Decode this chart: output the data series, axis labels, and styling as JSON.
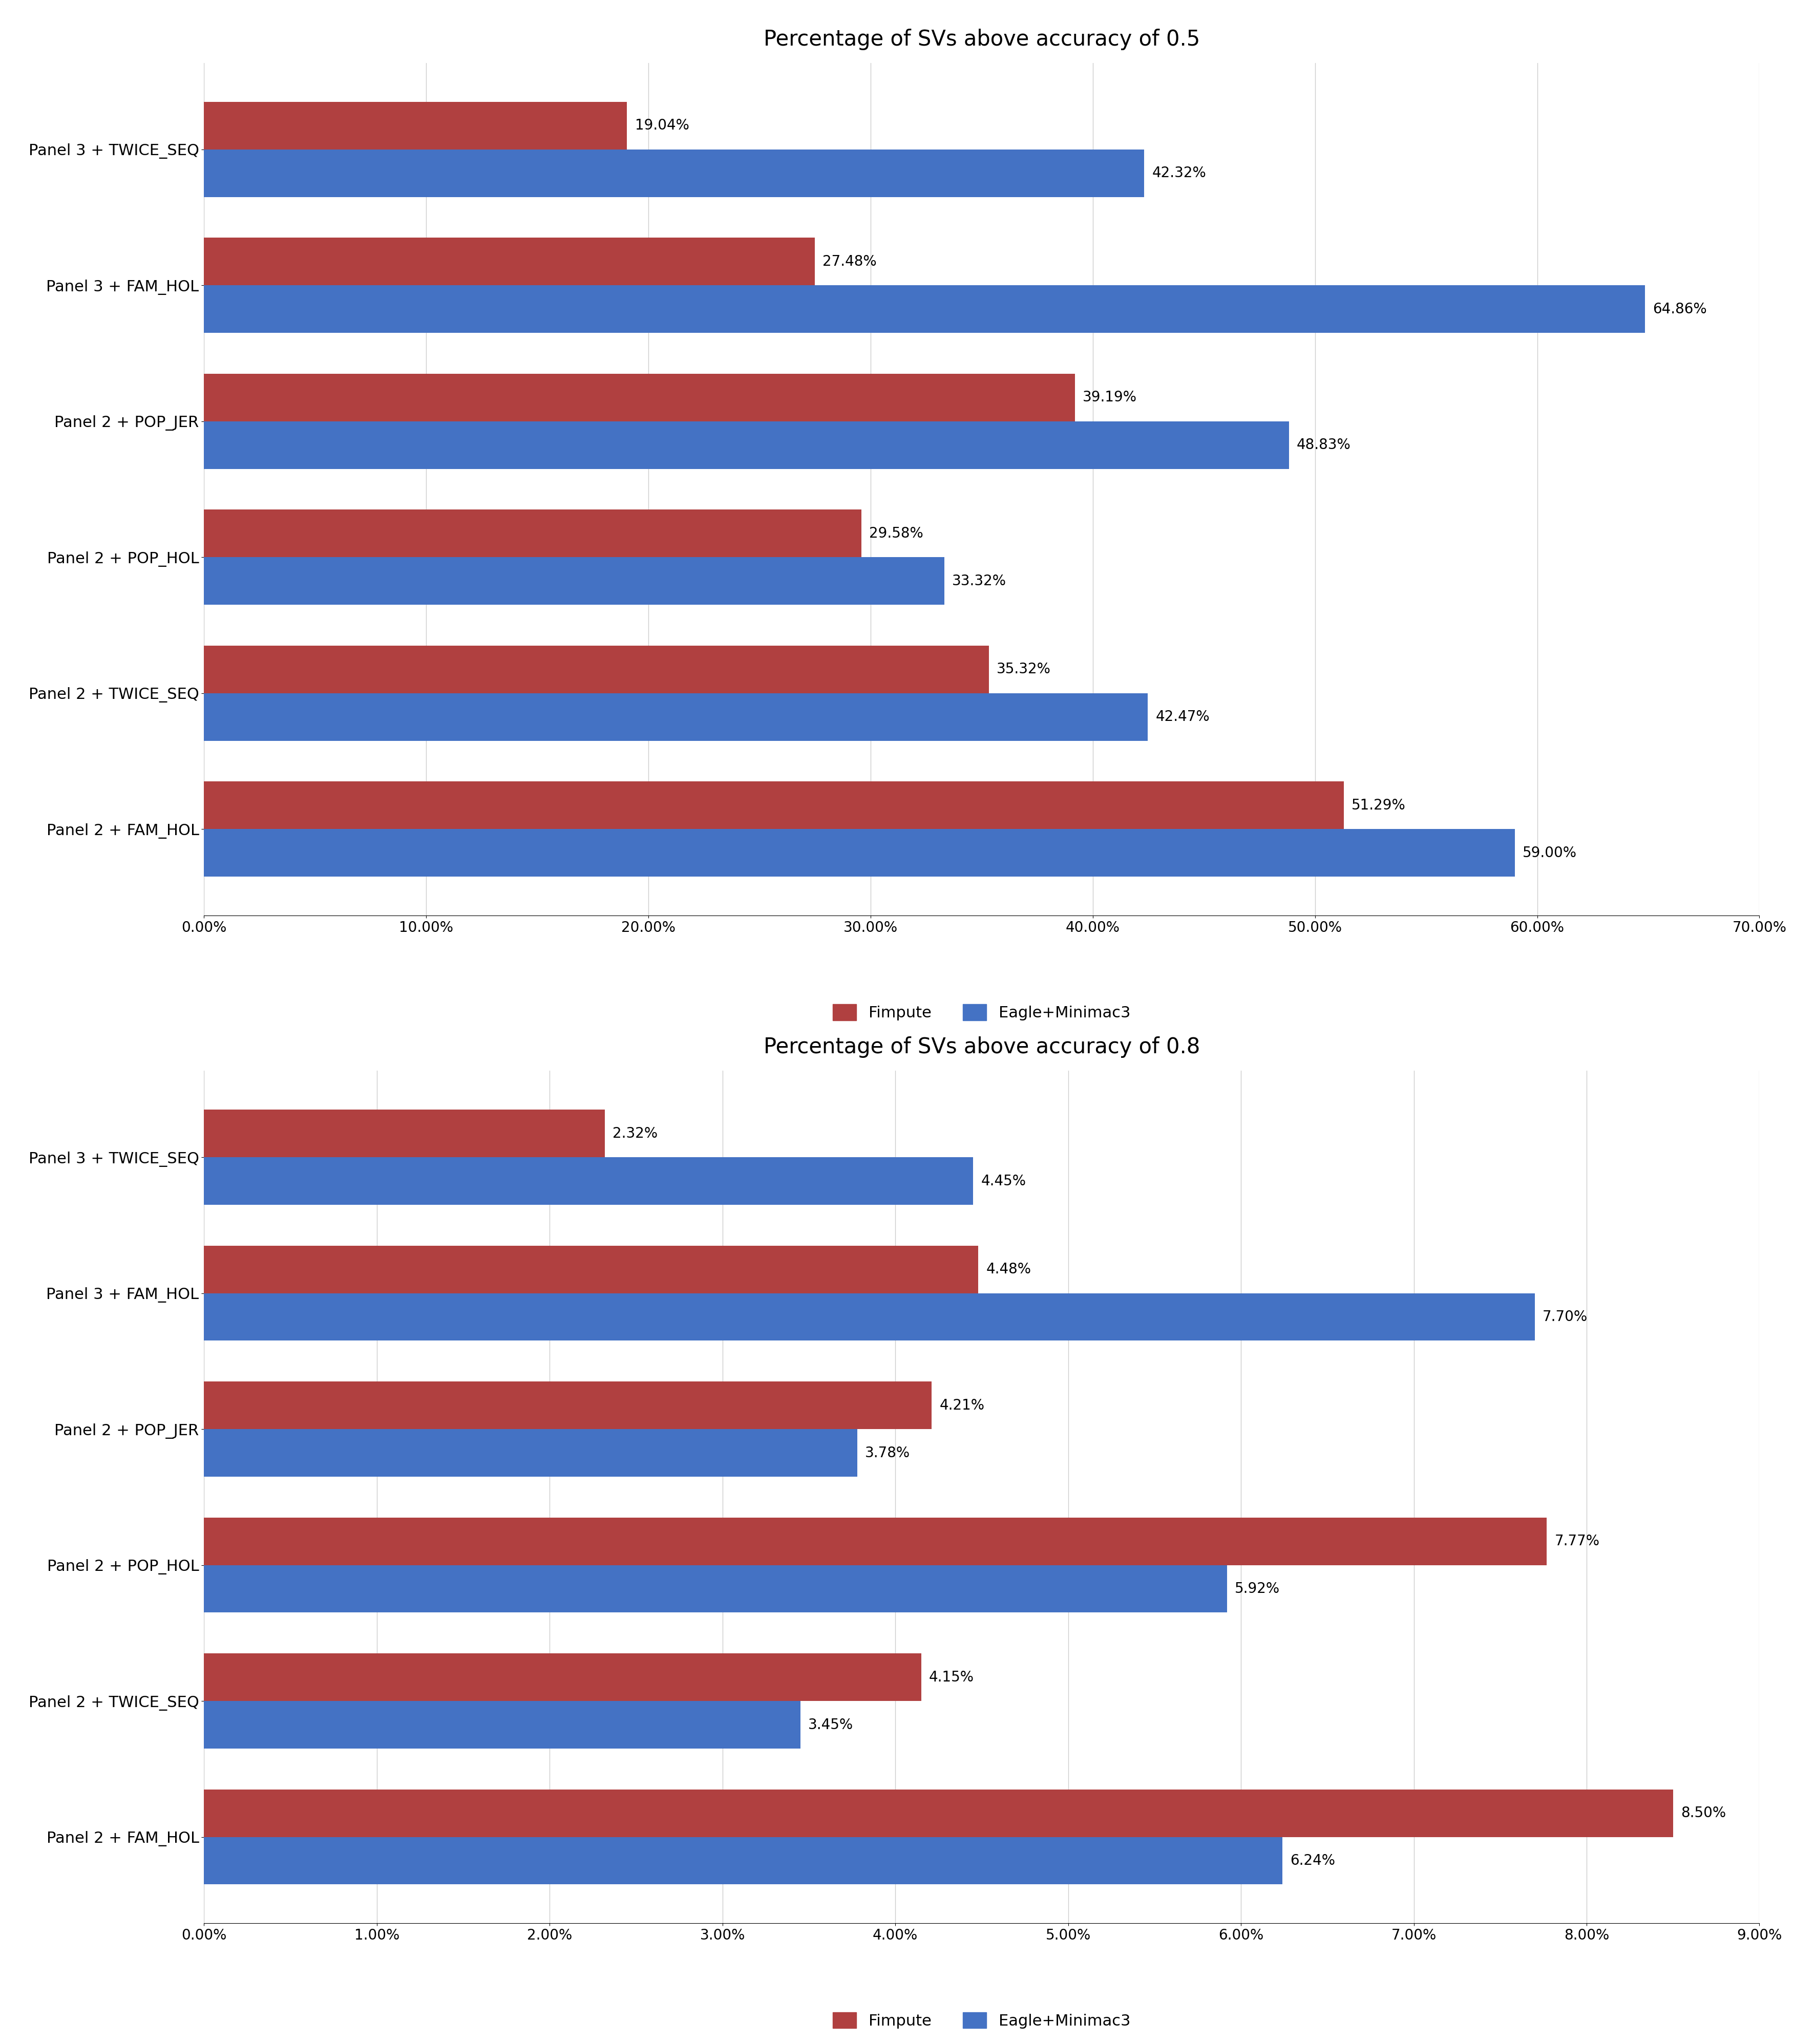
{
  "chart1": {
    "title": "Percentage of SVs above accuracy of 0.5",
    "categories": [
      "Panel 3 + TWICE_SEQ",
      "Panel 3 + FAM_HOL",
      "Panel 2 + POP_JER",
      "Panel 2 + POP_HOL",
      "Panel 2 + TWICE_SEQ",
      "Panel 2 + FAM_HOL"
    ],
    "fimpute": [
      19.04,
      27.48,
      39.19,
      29.58,
      35.32,
      51.29
    ],
    "eagle": [
      42.32,
      64.86,
      48.83,
      33.32,
      42.47,
      59.0
    ],
    "fimpute_labels": [
      "19.04%",
      "27.48%",
      "39.19%",
      "29.58%",
      "35.32%",
      "51.29%"
    ],
    "eagle_labels": [
      "42.32%",
      "64.86%",
      "48.83%",
      "33.32%",
      "42.47%",
      "59.00%"
    ],
    "xlim": [
      0,
      70
    ],
    "xticks": [
      0,
      10,
      20,
      30,
      40,
      50,
      60,
      70
    ],
    "xtick_labels": [
      "0.00%",
      "10.00%",
      "20.00%",
      "30.00%",
      "40.00%",
      "50.00%",
      "60.00%",
      "70.00%"
    ]
  },
  "chart2": {
    "title": "Percentage of SVs above accuracy of 0.8",
    "categories": [
      "Panel 3 + TWICE_SEQ",
      "Panel 3 + FAM_HOL",
      "Panel 2 + POP_JER",
      "Panel 2 + POP_HOL",
      "Panel 2 + TWICE_SEQ",
      "Panel 2 + FAM_HOL"
    ],
    "fimpute": [
      2.32,
      4.48,
      4.21,
      7.77,
      4.15,
      8.5
    ],
    "eagle": [
      4.45,
      7.7,
      3.78,
      5.92,
      3.45,
      6.24
    ],
    "fimpute_labels": [
      "2.32%",
      "4.48%",
      "4.21%",
      "7.77%",
      "4.15%",
      "8.50%"
    ],
    "eagle_labels": [
      "4.45%",
      "7.70%",
      "3.78%",
      "5.92%",
      "3.45%",
      "6.24%"
    ],
    "xlim": [
      0,
      9
    ],
    "xticks": [
      0,
      1,
      2,
      3,
      4,
      5,
      6,
      7,
      8,
      9
    ],
    "xtick_labels": [
      "0.00%",
      "1.00%",
      "2.00%",
      "3.00%",
      "4.00%",
      "5.00%",
      "6.00%",
      "7.00%",
      "8.00%",
      "9.00%"
    ]
  },
  "fimpute_color": "#B04040",
  "eagle_color": "#4472C4",
  "background_color": "#FFFFFF",
  "legend_labels": [
    "Fimpute",
    "Eagle+Minimac3"
  ],
  "bar_height": 0.35,
  "label_fontsize": 22,
  "title_fontsize": 30,
  "tick_fontsize": 20,
  "legend_fontsize": 22,
  "annotation_fontsize": 20
}
